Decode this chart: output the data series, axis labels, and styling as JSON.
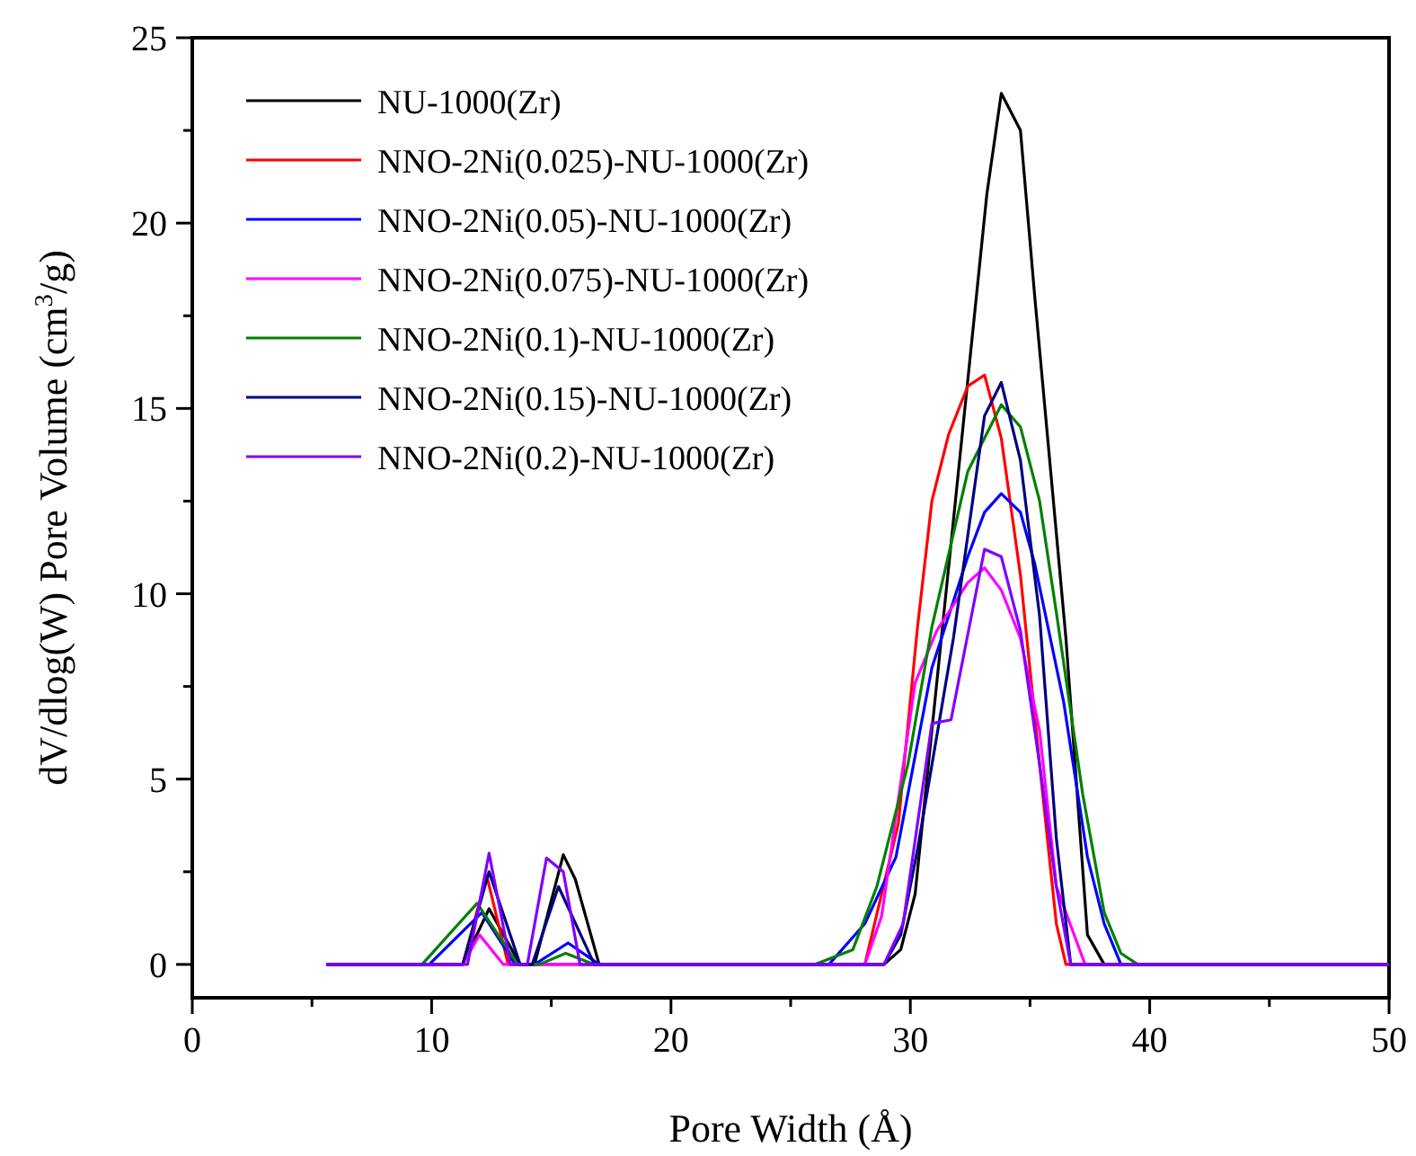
{
  "chart_data": {
    "type": "line",
    "xlabel": "Pore Width (Å)",
    "ylabel": "dV/dlog(W) Pore Volume (cm$^{3}$/g)",
    "xlim": [
      0,
      50
    ],
    "ylim": [
      -0.9,
      25
    ],
    "xticks": [
      0,
      {
        "value": 5,
        "label": null
      },
      10,
      {
        "value": 15,
        "label": null
      },
      20,
      {
        "value": 25,
        "label": null
      },
      30,
      {
        "value": 35,
        "label": null
      },
      40,
      {
        "value": 45,
        "label": null
      },
      50
    ],
    "yticks": [
      0,
      {
        "value": 2.5,
        "label": null
      },
      5,
      {
        "value": 7.5,
        "label": null
      },
      10,
      {
        "value": 12.5,
        "label": null
      },
      15,
      {
        "value": 17.5,
        "label": null
      },
      20,
      {
        "value": 22.5,
        "label": null
      },
      25
    ],
    "grid": false,
    "legend": "top left",
    "marker": "none",
    "line_style": "solid",
    "series": [
      {
        "name": "NU-1000(Zr)",
        "color": "#000000",
        "x": [
          5.6,
          11.3,
          12.4,
          13.7,
          14.3,
          15.5,
          16.0,
          17.0,
          28.9,
          29.6,
          30.2,
          33.2,
          33.8,
          34.6,
          35.2,
          36.5,
          37.4,
          38.1,
          50
        ],
        "values": [
          0,
          0,
          1.5,
          0,
          0,
          2.96,
          2.3,
          0,
          0,
          0.4,
          1.9,
          20.8,
          23.5,
          22.5,
          18,
          8.8,
          0.8,
          0,
          0
        ]
      },
      {
        "name": "NNO-2Ni(0.025)-NU-1000(Zr)",
        "color": "#ff0000",
        "x": [
          5.6,
          11.3,
          12.3,
          13.2,
          28.1,
          29.5,
          30.3,
          30.9,
          31.6,
          32.4,
          33.1,
          33.8,
          34.6,
          35.4,
          36.1,
          36.5,
          50
        ],
        "values": [
          0,
          0,
          2.4,
          0,
          0,
          3.8,
          9.1,
          12.5,
          14.3,
          15.6,
          15.9,
          14.2,
          10.5,
          5.4,
          1.1,
          0,
          0
        ]
      },
      {
        "name": "NNO-2Ni(0.05)-NU-1000(Zr)",
        "color": "#0000ff",
        "x": [
          5.6,
          9.9,
          12.1,
          13.5,
          14.3,
          15.7,
          17.0,
          26.6,
          28.1,
          29.4,
          30.9,
          32.4,
          33.1,
          33.8,
          34.6,
          35.2,
          36.4,
          37.4,
          38.1,
          38.8,
          50
        ],
        "values": [
          0,
          0,
          1.4,
          0,
          0,
          0.58,
          0,
          0,
          1.1,
          2.9,
          8.0,
          11.0,
          12.2,
          12.7,
          12.2,
          10.8,
          7.1,
          2.9,
          1.1,
          0,
          0
        ]
      },
      {
        "name": "NNO-2Ni(0.075)-NU-1000(Zr)",
        "color": "#ff00ff",
        "x": [
          5.6,
          11.3,
          12.0,
          13.0,
          28.1,
          28.8,
          30.2,
          31.1,
          32.4,
          33.1,
          33.8,
          34.6,
          35.4,
          36.1,
          37.3,
          50
        ],
        "values": [
          0,
          0,
          0.8,
          0,
          0,
          1.3,
          7.6,
          9.0,
          10.3,
          10.7,
          10.1,
          8.8,
          6.3,
          2.1,
          0,
          0
        ]
      },
      {
        "name": "NNO-2Ni(0.1)-NU-1000(Zr)",
        "color": "#008000",
        "x": [
          5.6,
          9.6,
          11.9,
          13.6,
          14.5,
          15.6,
          16.8,
          26.0,
          27.6,
          28.6,
          29.9,
          30.9,
          32.4,
          33.8,
          34.6,
          35.4,
          36.1,
          37.2,
          38.1,
          38.8,
          39.5,
          50
        ],
        "values": [
          0,
          0,
          1.65,
          0,
          0,
          0.3,
          0,
          0,
          0.4,
          2.1,
          5.4,
          9.1,
          13.3,
          15.1,
          14.5,
          12.5,
          9.5,
          4.6,
          1.4,
          0.3,
          0,
          0
        ]
      },
      {
        "name": "NNO-2Ni(0.15)-NU-1000(Zr)",
        "color": "#000080",
        "x": [
          5.6,
          11.3,
          12.4,
          13.7,
          14.2,
          15.3,
          16.8,
          28.9,
          29.6,
          30.3,
          31.8,
          33.1,
          33.8,
          34.6,
          35.4,
          36.1,
          36.7,
          50
        ],
        "values": [
          0,
          0,
          2.5,
          0,
          0,
          2.1,
          0,
          0,
          0.8,
          3.1,
          8.8,
          14.8,
          15.7,
          13.6,
          9.4,
          3.4,
          0,
          0
        ]
      },
      {
        "name": "NNO-2Ni(0.2)-NU-1000(Zr)",
        "color": "#8000ff",
        "x": [
          5.6,
          11.5,
          12.4,
          13.3,
          14.0,
          14.8,
          15.5,
          16.2,
          28.9,
          29.7,
          30.9,
          31.7,
          33.1,
          33.8,
          34.6,
          35.4,
          36.1,
          36.7,
          50
        ],
        "values": [
          0,
          0,
          3.0,
          0,
          0,
          2.87,
          2.5,
          0,
          0,
          1.1,
          6.5,
          6.6,
          11.2,
          11.0,
          9.0,
          5.4,
          2.1,
          0,
          0
        ]
      }
    ]
  }
}
